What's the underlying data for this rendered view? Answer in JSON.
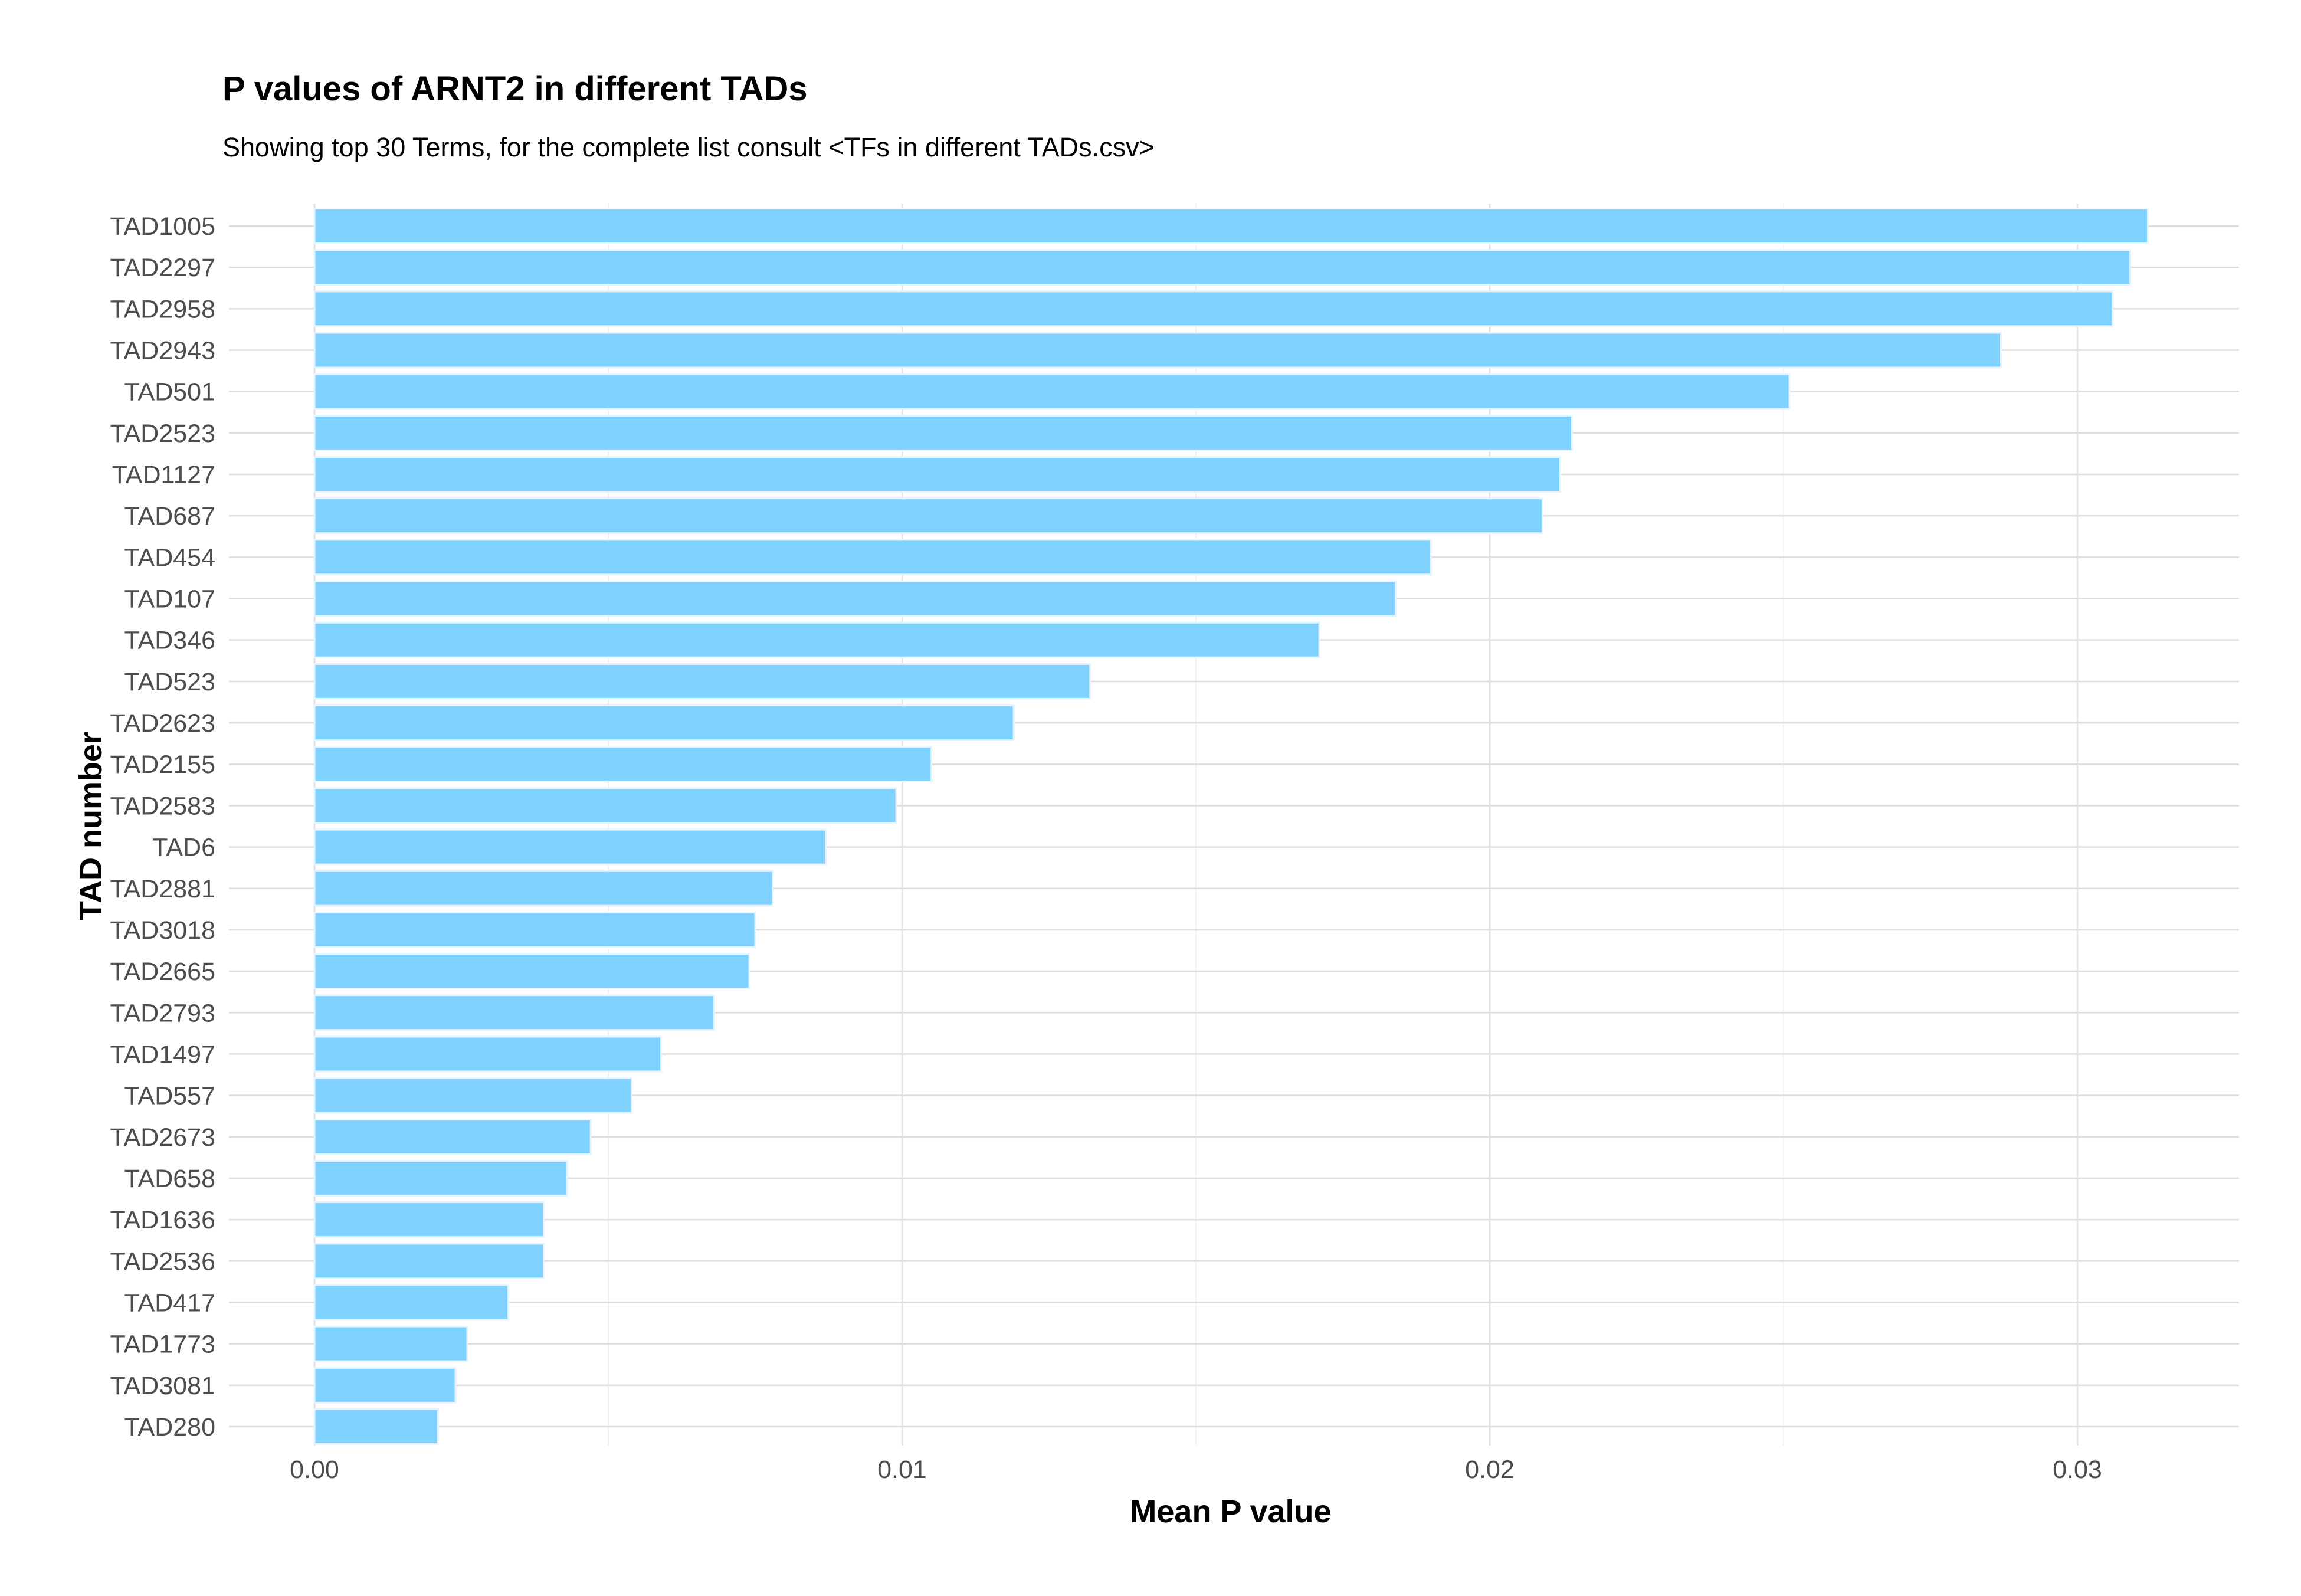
{
  "chart_data": {
    "type": "bar",
    "orientation": "horizontal",
    "title": "P values of ARNT2 in different TADs",
    "subtitle": "Showing top 30 Terms, for the complete list consult <TFs in different TADs.csv>",
    "xlabel": "Mean P value",
    "ylabel": "TAD number",
    "xlim": [
      0,
      0.0312
    ],
    "x_ticks": [
      0.0,
      0.01,
      0.02,
      0.03
    ],
    "x_tick_labels": [
      "0.00",
      "0.01",
      "0.02",
      "0.03"
    ],
    "grid": true,
    "legend": "none",
    "bar_color": "#7fd1ff",
    "bar_edge_color": "#e6f4ff",
    "categories": [
      "TAD1005",
      "TAD2297",
      "TAD2958",
      "TAD2943",
      "TAD501",
      "TAD2523",
      "TAD1127",
      "TAD687",
      "TAD454",
      "TAD107",
      "TAD346",
      "TAD523",
      "TAD2623",
      "TAD2155",
      "TAD2583",
      "TAD6",
      "TAD2881",
      "TAD3018",
      "TAD2665",
      "TAD2793",
      "TAD1497",
      "TAD557",
      "TAD2673",
      "TAD658",
      "TAD1636",
      "TAD2536",
      "TAD417",
      "TAD1773",
      "TAD3081",
      "TAD280"
    ],
    "values": [
      0.0312,
      0.0309,
      0.0306,
      0.0287,
      0.0251,
      0.0214,
      0.0212,
      0.0209,
      0.019,
      0.0184,
      0.0171,
      0.0132,
      0.0119,
      0.0105,
      0.0099,
      0.0087,
      0.0078,
      0.0075,
      0.0074,
      0.0068,
      0.0059,
      0.0054,
      0.0047,
      0.0043,
      0.0039,
      0.0039,
      0.0033,
      0.0026,
      0.0024,
      0.0021
    ]
  }
}
